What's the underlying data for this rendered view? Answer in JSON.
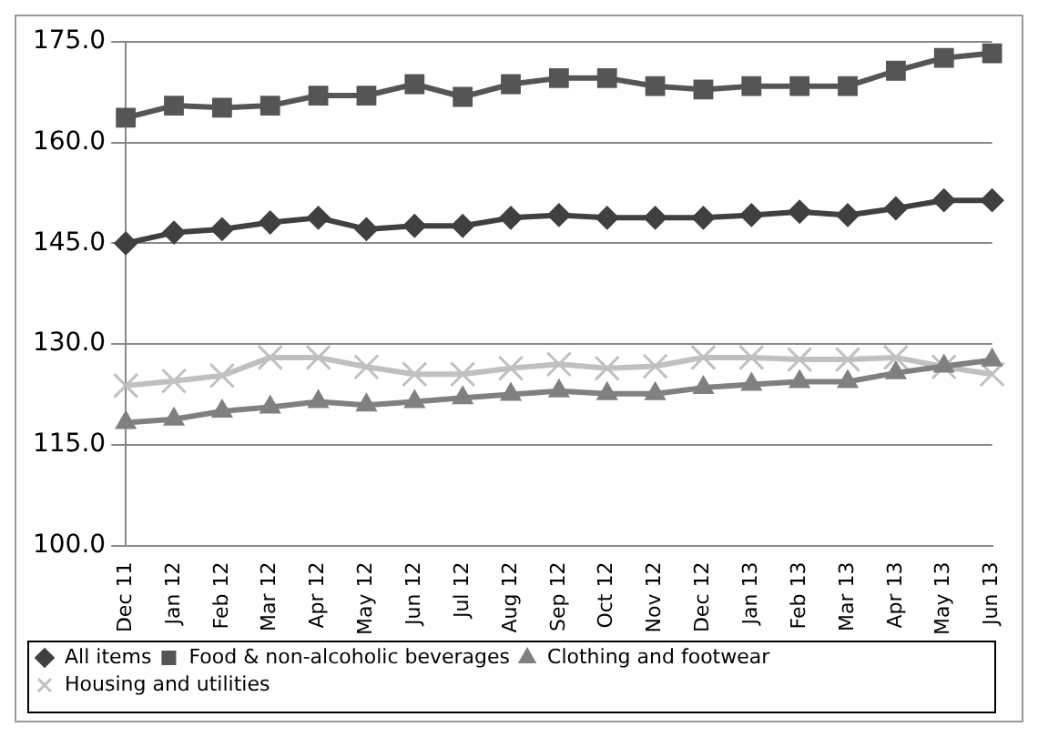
{
  "chart_data": {
    "type": "line",
    "categories": [
      "Dec 11",
      "Jan 12",
      "Feb 12",
      "Mar 12",
      "Apr 12",
      "May 12",
      "Jun 12",
      "Jul 12",
      "Aug 12",
      "Sep 12",
      "Oct 12",
      "Nov 12",
      "Dec 12",
      "Jan 13",
      "Feb 13",
      "Mar 13",
      "Apr 13",
      "May 13",
      "Jun 13"
    ],
    "series": [
      {
        "name": "All items",
        "color": "#404040",
        "marker": "diamond",
        "values": [
          145.0,
          146.6,
          147.1,
          148.1,
          148.8,
          147.1,
          147.6,
          147.6,
          148.8,
          149.2,
          148.8,
          148.8,
          148.8,
          149.2,
          149.7,
          149.2,
          150.2,
          151.4,
          151.4
        ]
      },
      {
        "name": "Food & non-alcoholic beverages",
        "color": "#555555",
        "marker": "square",
        "values": [
          163.7,
          165.5,
          165.2,
          165.5,
          167.0,
          167.0,
          168.7,
          166.8,
          168.7,
          169.6,
          169.6,
          168.4,
          167.9,
          168.4,
          168.4,
          168.4,
          170.7,
          172.6,
          173.3
        ]
      },
      {
        "name": "Clothing and footwear",
        "color": "#808080",
        "marker": "triangle",
        "values": [
          118.3,
          118.8,
          120.0,
          120.6,
          121.4,
          120.9,
          121.4,
          122.0,
          122.5,
          123.0,
          122.6,
          122.6,
          123.5,
          124.0,
          124.4,
          124.4,
          125.7,
          126.7,
          127.6
        ]
      },
      {
        "name": "Housing and utilities",
        "color": "#c0c0c0",
        "marker": "cross",
        "values": [
          123.8,
          124.5,
          125.3,
          128.0,
          128.0,
          126.6,
          125.5,
          125.5,
          126.4,
          127.0,
          126.4,
          126.7,
          128.0,
          128.0,
          127.7,
          127.7,
          128.0,
          126.6,
          125.5
        ]
      }
    ],
    "ylim": [
      100,
      175
    ],
    "yticks": [
      {
        "value": 100,
        "label": "100.0"
      },
      {
        "value": 115,
        "label": "115.0"
      },
      {
        "value": 130,
        "label": "130.0"
      },
      {
        "value": 145,
        "label": "145.0"
      },
      {
        "value": 160,
        "label": "160.0"
      },
      {
        "value": 175,
        "label": "175.0"
      }
    ],
    "grid": "y",
    "legend": "bottom",
    "line_style": "solid"
  }
}
